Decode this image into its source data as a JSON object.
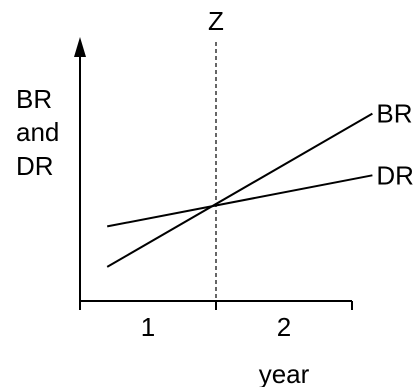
{
  "chart_data": {
    "type": "line",
    "title": "",
    "ylabel_lines": [
      "BR",
      "and",
      "DR"
    ],
    "xlabel": "year",
    "x_tick_labels": [
      "1",
      "2"
    ],
    "x_range": [
      -1,
      1.2
    ],
    "y_range": [
      0,
      1
    ],
    "marker": {
      "x": 0,
      "label": "Z",
      "style": "dashed"
    },
    "series": [
      {
        "name": "BR",
        "x": [
          -0.8,
          1.15
        ],
        "y": [
          0.16,
          0.88
        ]
      },
      {
        "name": "DR",
        "x": [
          -0.8,
          1.15
        ],
        "y": [
          0.35,
          0.59
        ]
      }
    ],
    "colors": {
      "line": "#000000",
      "axis": "#000000"
    }
  }
}
